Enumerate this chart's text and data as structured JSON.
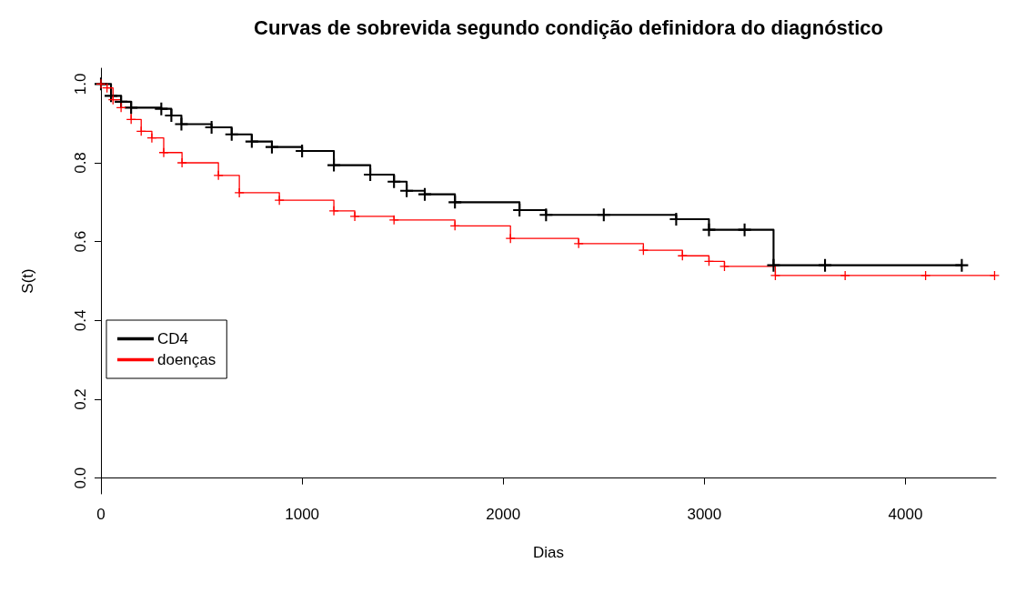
{
  "chart_data": {
    "type": "step",
    "title": "Curvas de sobrevida segundo condição definidora do diagnóstico",
    "xlabel": "Dias",
    "ylabel": "S(t)",
    "xlim": [
      0,
      4450
    ],
    "xticks": [
      0,
      1000,
      2000,
      3000,
      4000
    ],
    "ylim": [
      -0.04,
      1.04
    ],
    "yticks": [
      {
        "value": 0,
        "label": "0.0"
      },
      0.2,
      0.4,
      0.6,
      0.8,
      {
        "value": 1,
        "label": "1.0"
      }
    ],
    "grid": false,
    "legend": "left",
    "marker": "cross",
    "line_style": "solid",
    "series": [
      {
        "name": "CD4",
        "color": "#000000",
        "x": [
          0,
          50,
          100,
          150,
          300,
          350,
          400,
          550,
          650,
          750,
          850,
          1000,
          1158,
          1339,
          1457,
          1520,
          1610,
          1760,
          2081,
          2213,
          2500,
          2860,
          3023,
          3200,
          3344,
          3600,
          4280
        ],
        "values": [
          1,
          0.97,
          0.955,
          0.94,
          0.937,
          0.92,
          0.898,
          0.89,
          0.872,
          0.854,
          0.84,
          0.83,
          0.794,
          0.77,
          0.752,
          0.729,
          0.72,
          0.7,
          0.68,
          0.668,
          0.668,
          0.657,
          0.63,
          0.63,
          0.54,
          0.54,
          0.54
        ]
      },
      {
        "name": "doenças",
        "color": "#ff0000",
        "x": [
          0,
          30,
          60,
          100,
          150,
          200,
          253,
          312,
          403,
          584,
          688,
          887,
          1158,
          1262,
          1457,
          1760,
          2036,
          2375,
          2697,
          2891,
          3023,
          3100,
          3353,
          3700,
          4100,
          4443
        ],
        "values": [
          1,
          0.99,
          0.96,
          0.94,
          0.91,
          0.88,
          0.863,
          0.826,
          0.8,
          0.768,
          0.724,
          0.705,
          0.678,
          0.664,
          0.655,
          0.64,
          0.608,
          0.595,
          0.578,
          0.564,
          0.55,
          0.537,
          0.514,
          0.514,
          0.514,
          0.514
        ]
      }
    ]
  }
}
